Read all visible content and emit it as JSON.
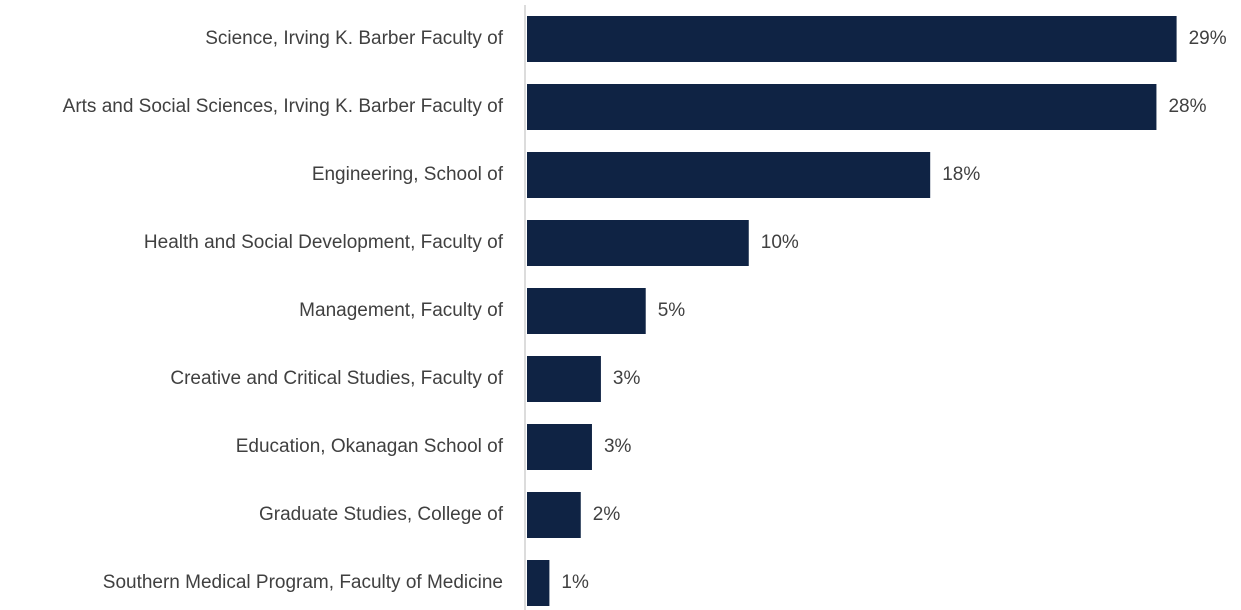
{
  "chart_data": {
    "type": "barh",
    "categories": [
      "Science, Irving K. Barber Faculty of",
      "Arts and Social Sciences, Irving K. Barber Faculty of",
      "Engineering, School of",
      "Health and Social Development, Faculty of",
      "Management, Faculty of",
      "Creative and Critical Studies, Faculty of",
      "Education, Okanagan School of",
      "Graduate Studies, College of",
      "Southern Medical Program, Faculty of Medicine"
    ],
    "values": [
      29,
      28.1,
      18,
      9.9,
      5.3,
      3.3,
      2.9,
      2.4,
      1.0
    ],
    "value_labels": [
      "29%",
      "28%",
      "18%",
      "10%",
      "5%",
      "3%",
      "3%",
      "2%",
      "1%"
    ],
    "color": "#0f2344",
    "xlim": [
      0,
      31
    ]
  }
}
